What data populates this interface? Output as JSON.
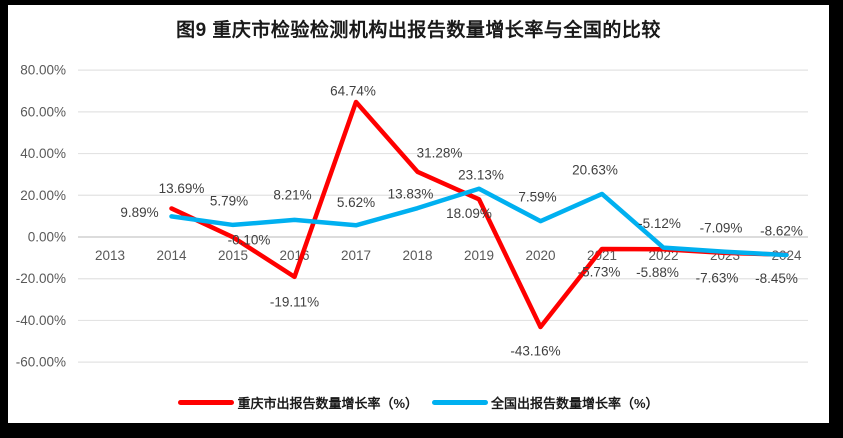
{
  "title": "图9 重庆市检验检测机构出报告数量增长率与全国的比较",
  "chart_data": {
    "type": "line",
    "categories": [
      "2013",
      "2014",
      "2015",
      "2016",
      "2017",
      "2018",
      "2019",
      "2020",
      "2021",
      "2022",
      "2023",
      "2024"
    ],
    "y_axis": {
      "min": -60,
      "max": 80,
      "step": 20,
      "tick_labels": [
        "80.00%",
        "60.00%",
        "40.00%",
        "20.00%",
        "0.00%",
        "-20.00%",
        "-40.00%",
        "-60.00%"
      ]
    },
    "grid": true,
    "legend_position": "bottom",
    "colors": {
      "grid": "#E3E3E3",
      "axis": "#C8C8C8",
      "tick_text": "#595959",
      "label_text": "#404040",
      "chongqing_red": "#FF0000",
      "national_blue": "#00B0F0"
    },
    "series": [
      {
        "name": "重庆市出报告数量增长率（%）",
        "color": "#FF0000",
        "points": [
          {
            "category": "2014",
            "value": 13.69,
            "label": "13.69%",
            "dx": 10,
            "dy": -20
          },
          {
            "category": "2015",
            "value": -0.1,
            "label": "-0.10%",
            "dx": 16,
            "dy": 3
          },
          {
            "category": "2016",
            "value": -19.11,
            "label": "-19.11%",
            "dx": 0,
            "dy": 25
          },
          {
            "category": "2017",
            "value": 64.74,
            "label": "64.74%",
            "dx": -3,
            "dy": -11
          },
          {
            "category": "2018",
            "value": 31.28,
            "label": "31.28%",
            "dx": 22,
            "dy": -19
          },
          {
            "category": "2019",
            "value": 18.09,
            "label": "18.09%",
            "dx": -10,
            "dy": 14
          },
          {
            "category": "2020",
            "value": -43.16,
            "label": "-43.16%",
            "dx": -5,
            "dy": 24
          },
          {
            "category": "2021",
            "value": -5.73,
            "label": "-5.73%",
            "dx": -3,
            "dy": 23
          },
          {
            "category": "2022",
            "value": -5.88,
            "label": "-5.88%",
            "dx": -6,
            "dy": 23
          },
          {
            "category": "2023",
            "value": -7.63,
            "label": "-7.63%",
            "dx": -8,
            "dy": 25
          },
          {
            "category": "2024",
            "value": -8.45,
            "label": "-8.45%",
            "dx": -10,
            "dy": 24
          }
        ]
      },
      {
        "name": "全国出报告数量增长率（%）",
        "color": "#00B0F0",
        "points": [
          {
            "category": "2014",
            "value": 9.89,
            "label": "9.89%",
            "dx": -32,
            "dy": -4
          },
          {
            "category": "2015",
            "value": 5.79,
            "label": "5.79%",
            "dx": -4,
            "dy": -24
          },
          {
            "category": "2016",
            "value": 8.21,
            "label": "8.21%",
            "dx": -2,
            "dy": -25
          },
          {
            "category": "2017",
            "value": 5.62,
            "label": "5.62%",
            "dx": 0,
            "dy": -23
          },
          {
            "category": "2018",
            "value": 13.83,
            "label": "13.83%",
            "dx": -7,
            "dy": -14
          },
          {
            "category": "2019",
            "value": 23.13,
            "label": "23.13%",
            "dx": 2,
            "dy": -14
          },
          {
            "category": "2020",
            "value": 7.59,
            "label": "7.59%",
            "dx": -3,
            "dy": -24
          },
          {
            "category": "2021",
            "value": 20.63,
            "label": "20.63%",
            "dx": -7,
            "dy": -24
          },
          {
            "category": "2022",
            "value": -5.12,
            "label": "-5.12%",
            "dx": -4,
            "dy": -24
          },
          {
            "category": "2023",
            "value": -7.09,
            "label": "-7.09%",
            "dx": -4,
            "dy": -24
          },
          {
            "category": "2024",
            "value": -8.62,
            "label": "-8.62%",
            "dx": -5,
            "dy": -24
          }
        ]
      }
    ]
  }
}
